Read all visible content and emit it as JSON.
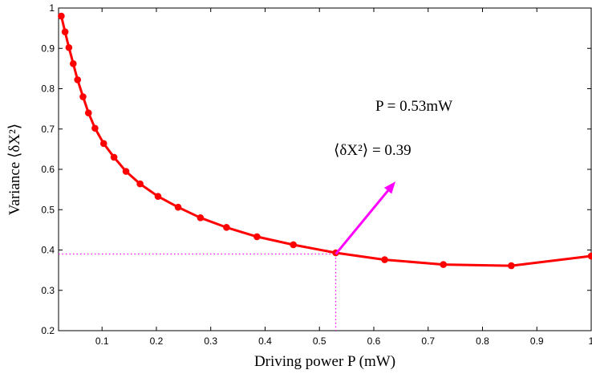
{
  "chart_data": {
    "type": "line",
    "xlabel": "Driving power P (mW)",
    "ylabel": "Variance ⟨δX²⟩",
    "xlim": [
      0.02,
      1.0
    ],
    "ylim": [
      0.2,
      1.0
    ],
    "grid": false,
    "x_ticks": [
      "0.1",
      "0.2",
      "0.3",
      "0.4",
      "0.5",
      "0.6",
      "0.7",
      "0.8",
      "0.9",
      "1"
    ],
    "y_ticks": [
      "0.2",
      "0.3",
      "0.4",
      "0.5",
      "0.6",
      "0.7",
      "0.8",
      "0.9",
      "1"
    ],
    "series_color": "#ff0000",
    "annotation_color": "#ff00ff",
    "series": [
      {
        "x": [
          0.025,
          0.032,
          0.039,
          0.047,
          0.055,
          0.065,
          0.075,
          0.087,
          0.103,
          0.122,
          0.144,
          0.17,
          0.203,
          0.24,
          0.281,
          0.329,
          0.385,
          0.452,
          0.53,
          0.62,
          0.728,
          0.853,
          1.0
        ],
        "y": [
          0.98,
          0.941,
          0.902,
          0.862,
          0.822,
          0.78,
          0.74,
          0.702,
          0.664,
          0.63,
          0.595,
          0.564,
          0.533,
          0.506,
          0.48,
          0.456,
          0.433,
          0.413,
          0.393,
          0.376,
          0.364,
          0.361,
          0.385
        ]
      }
    ],
    "highlight": {
      "x": 0.53,
      "y": 0.39
    },
    "annotations": {
      "power": "P = 0.53mW",
      "variance": "⟨δX²⟩ = 0.39",
      "arrow": {
        "from": [
          0.53,
          0.39
        ],
        "to": [
          0.64,
          0.57
        ]
      }
    }
  }
}
